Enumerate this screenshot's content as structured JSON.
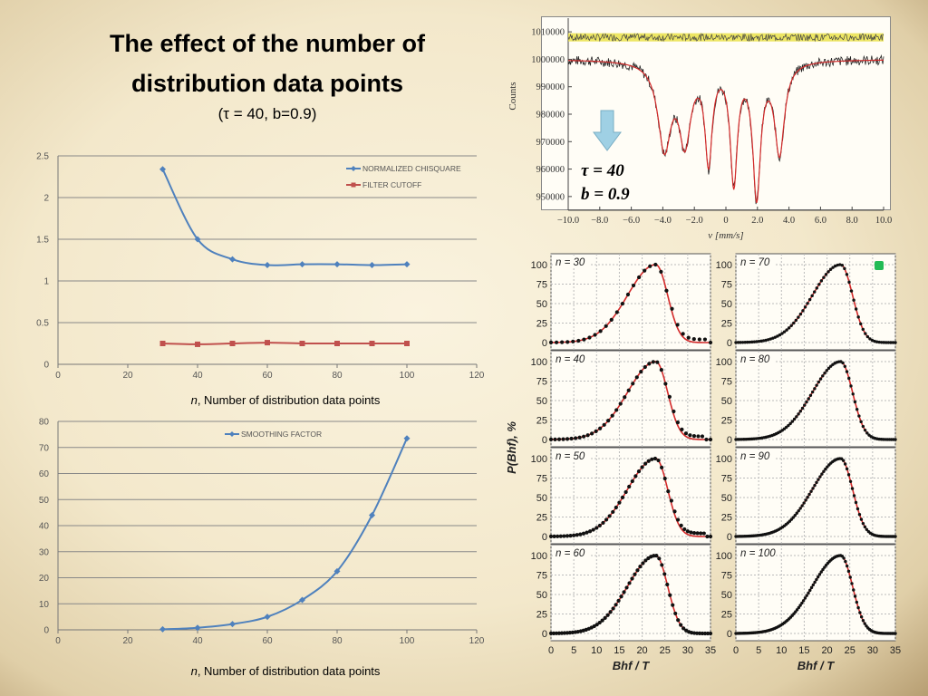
{
  "title_line1": "The effect of the number of",
  "title_line2": "distribution data points",
  "subtitle": "(τ = 40, b=0.9)",
  "colors": {
    "chisquare": "#4f81bd",
    "cutoff": "#c0504d",
    "smoothing": "#4f81bd",
    "fit": "#d42a2a",
    "points": "#111111",
    "reference": "#e8e040",
    "arrow": "#9fd0e4",
    "marker": "#22bb55"
  },
  "chart_data": [
    {
      "type": "line",
      "xlabel": "n, Number of distribution data points",
      "xlabel_prefix": "n",
      "xlabel_rest": ", Number of distribution data points",
      "xlim": [
        0,
        120
      ],
      "ylim": [
        0,
        2.5
      ],
      "xticks": [
        0,
        20,
        40,
        60,
        80,
        100,
        120
      ],
      "yticks": [
        "0",
        "0.5",
        "1",
        "1.5",
        "2",
        "2.5"
      ],
      "legend_position": "top-right",
      "series": [
        {
          "name": "NORMALIZED CHISQUARE",
          "x": [
            30,
            40,
            50,
            60,
            70,
            80,
            90,
            100
          ],
          "y": [
            2.34,
            1.5,
            1.26,
            1.19,
            1.2,
            1.2,
            1.19,
            1.2
          ]
        },
        {
          "name": "FILTER CUTOFF",
          "x": [
            30,
            40,
            50,
            60,
            70,
            80,
            90,
            100
          ],
          "y": [
            0.25,
            0.24,
            0.25,
            0.26,
            0.25,
            0.25,
            0.25,
            0.25
          ]
        }
      ]
    },
    {
      "type": "line",
      "xlabel": "n, Number of distribution data points",
      "xlabel_prefix": "n",
      "xlabel_rest": ", Number of distribution data points",
      "xlim": [
        0,
        120
      ],
      "ylim": [
        0,
        80
      ],
      "xticks": [
        0,
        20,
        40,
        60,
        80,
        100,
        120
      ],
      "yticks": [
        "0",
        "10",
        "20",
        "30",
        "40",
        "50",
        "60",
        "70",
        "80"
      ],
      "legend_position": "top-center",
      "series": [
        {
          "name": "SMOOTHING FACTOR",
          "x": [
            30,
            40,
            50,
            60,
            70,
            80,
            90,
            100
          ],
          "y": [
            0.2,
            0.8,
            2.2,
            5.0,
            11.5,
            22.5,
            44,
            73.5
          ]
        }
      ]
    },
    {
      "type": "line",
      "ylabel": "Counts",
      "xlabel": "v [mm/s]",
      "xlim": [
        -10,
        10
      ],
      "ylim": [
        945000,
        1015000
      ],
      "xticks": [
        "−10.0",
        "−8.0",
        "−6.0",
        "−4.0",
        "−2.0",
        "0",
        "2.0",
        "4.0",
        "6.0",
        "8.0",
        "10.0"
      ],
      "yticks": [
        "950000",
        "960000",
        "970000",
        "980000",
        "990000",
        "1000000",
        "1010000"
      ],
      "annotations": [
        "τ = 40",
        "b = 0.9"
      ],
      "baseline_counts": 1000000,
      "reference_counts": 1008000,
      "dips": [
        {
          "center": -3.9,
          "depth": 31000,
          "width": 1.0
        },
        {
          "center": -2.6,
          "depth": 28000,
          "width": 0.9
        },
        {
          "center": -1.1,
          "depth": 35000,
          "width": 0.55
        },
        {
          "center": 0.5,
          "depth": 43000,
          "width": 0.55
        },
        {
          "center": 1.95,
          "depth": 48000,
          "width": 0.6
        },
        {
          "center": 3.4,
          "depth": 33000,
          "width": 0.75
        }
      ]
    },
    {
      "type": "line",
      "panel_grid": "4x2",
      "ylabel": "P(Bhf), %",
      "xlabel": "Bhf / T",
      "xlim": [
        0,
        35
      ],
      "ylim": [
        0,
        100
      ],
      "xticks": [
        "0",
        "5",
        "10",
        "15",
        "20",
        "25",
        "30",
        "35"
      ],
      "yticks": [
        "0",
        "25",
        "50",
        "75",
        "100"
      ],
      "series": [
        {
          "name": "n = 30",
          "n": 30
        },
        {
          "name": "n = 70",
          "n": 70
        },
        {
          "name": "n = 40",
          "n": 40
        },
        {
          "name": "n = 80",
          "n": 80
        },
        {
          "name": "n = 50",
          "n": 50
        },
        {
          "name": "n = 90",
          "n": 90
        },
        {
          "name": "n = 60",
          "n": 60
        },
        {
          "name": "n = 100",
          "n": 100
        }
      ]
    }
  ]
}
